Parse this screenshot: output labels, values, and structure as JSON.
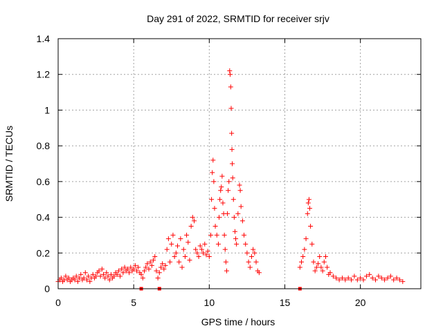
{
  "chart_data": {
    "type": "scatter",
    "title": "Day 291 of 2022, SRMTID for receiver srjv",
    "xlabel": "GPS time / hours",
    "ylabel": "SRMTID / TECUs",
    "xlim": [
      0,
      24
    ],
    "ylim": [
      0,
      1.4
    ],
    "xticks": [
      0,
      5,
      10,
      15,
      20
    ],
    "yticks": [
      0,
      0.2,
      0.4,
      0.6,
      0.8,
      1,
      1.2,
      1.4
    ],
    "ytick_labels": [
      "0",
      "0.2",
      "0.4",
      "0.6",
      "0.8",
      "1",
      "1.2",
      "1.4"
    ],
    "grid": true,
    "marker": "plus",
    "colors": {
      "series": "#ff0000",
      "axis": "#000000",
      "grid": "#a0a0a0"
    },
    "series": [
      {
        "name": "SRMTID",
        "points": [
          [
            0.0,
            0.04
          ],
          [
            0.1,
            0.05
          ],
          [
            0.2,
            0.06
          ],
          [
            0.3,
            0.04
          ],
          [
            0.4,
            0.05
          ],
          [
            0.5,
            0.07
          ],
          [
            0.6,
            0.05
          ],
          [
            0.7,
            0.06
          ],
          [
            0.8,
            0.04
          ],
          [
            0.9,
            0.05
          ],
          [
            1.0,
            0.06
          ],
          [
            1.1,
            0.05
          ],
          [
            1.2,
            0.07
          ],
          [
            1.3,
            0.04
          ],
          [
            1.4,
            0.06
          ],
          [
            1.5,
            0.08
          ],
          [
            1.6,
            0.05
          ],
          [
            1.7,
            0.06
          ],
          [
            1.8,
            0.09
          ],
          [
            1.9,
            0.05
          ],
          [
            2.0,
            0.07
          ],
          [
            2.1,
            0.04
          ],
          [
            2.2,
            0.06
          ],
          [
            2.3,
            0.08
          ],
          [
            2.4,
            0.06
          ],
          [
            2.5,
            0.07
          ],
          [
            2.6,
            0.09
          ],
          [
            2.7,
            0.1
          ],
          [
            2.8,
            0.07
          ],
          [
            2.9,
            0.11
          ],
          [
            3.0,
            0.08
          ],
          [
            3.1,
            0.06
          ],
          [
            3.2,
            0.09
          ],
          [
            3.3,
            0.07
          ],
          [
            3.4,
            0.05
          ],
          [
            3.5,
            0.08
          ],
          [
            3.6,
            0.06
          ],
          [
            3.7,
            0.07
          ],
          [
            3.8,
            0.09
          ],
          [
            3.9,
            0.08
          ],
          [
            4.0,
            0.1
          ],
          [
            4.1,
            0.07
          ],
          [
            4.2,
            0.11
          ],
          [
            4.3,
            0.09
          ],
          [
            4.4,
            0.12
          ],
          [
            4.5,
            0.1
          ],
          [
            4.6,
            0.11
          ],
          [
            4.7,
            0.09
          ],
          [
            4.8,
            0.12
          ],
          [
            4.9,
            0.1
          ],
          [
            5.0,
            0.11
          ],
          [
            5.1,
            0.13
          ],
          [
            5.2,
            0.1
          ],
          [
            5.3,
            0.12
          ],
          [
            5.4,
            0.09
          ],
          [
            5.5,
            0.08
          ],
          [
            5.6,
            0.06
          ],
          [
            5.7,
            0.1
          ],
          [
            5.8,
            0.12
          ],
          [
            5.9,
            0.14
          ],
          [
            6.0,
            0.11
          ],
          [
            6.1,
            0.15
          ],
          [
            6.2,
            0.13
          ],
          [
            6.3,
            0.16
          ],
          [
            6.4,
            0.18
          ],
          [
            6.5,
            0.1
          ],
          [
            6.6,
            0.06
          ],
          [
            6.7,
            0.09
          ],
          [
            6.8,
            0.12
          ],
          [
            6.9,
            0.14
          ],
          [
            7.0,
            0.11
          ],
          [
            7.1,
            0.13
          ],
          [
            7.2,
            0.22
          ],
          [
            7.3,
            0.28
          ],
          [
            7.4,
            0.15
          ],
          [
            7.5,
            0.25
          ],
          [
            7.6,
            0.3
          ],
          [
            7.7,
            0.18
          ],
          [
            7.8,
            0.2
          ],
          [
            7.9,
            0.24
          ],
          [
            8.0,
            0.15
          ],
          [
            8.1,
            0.28
          ],
          [
            8.2,
            0.12
          ],
          [
            8.3,
            0.22
          ],
          [
            8.4,
            0.18
          ],
          [
            8.5,
            0.3
          ],
          [
            8.6,
            0.26
          ],
          [
            8.7,
            0.16
          ],
          [
            8.8,
            0.35
          ],
          [
            8.9,
            0.4
          ],
          [
            9.0,
            0.38
          ],
          [
            9.1,
            0.22
          ],
          [
            9.2,
            0.2
          ],
          [
            9.3,
            0.18
          ],
          [
            9.4,
            0.24
          ],
          [
            9.5,
            0.22
          ],
          [
            9.6,
            0.2
          ],
          [
            9.7,
            0.25
          ],
          [
            9.8,
            0.19
          ],
          [
            9.9,
            0.21
          ],
          [
            10.0,
            0.18
          ],
          [
            10.1,
            0.3
          ],
          [
            10.15,
            0.5
          ],
          [
            10.2,
            0.65
          ],
          [
            10.25,
            0.72
          ],
          [
            10.3,
            0.6
          ],
          [
            10.35,
            0.45
          ],
          [
            10.4,
            0.35
          ],
          [
            10.5,
            0.3
          ],
          [
            10.6,
            0.25
          ],
          [
            10.65,
            0.4
          ],
          [
            10.7,
            0.5
          ],
          [
            10.75,
            0.55
          ],
          [
            10.8,
            0.57
          ],
          [
            10.85,
            0.63
          ],
          [
            10.9,
            0.48
          ],
          [
            10.95,
            0.42
          ],
          [
            11.0,
            0.3
          ],
          [
            11.05,
            0.22
          ],
          [
            11.1,
            0.15
          ],
          [
            11.15,
            0.1
          ],
          [
            11.2,
            0.42
          ],
          [
            11.25,
            0.55
          ],
          [
            11.3,
            0.6
          ],
          [
            11.35,
            1.22
          ],
          [
            11.38,
            1.2
          ],
          [
            11.42,
            1.13
          ],
          [
            11.45,
            1.01
          ],
          [
            11.48,
            0.87
          ],
          [
            11.5,
            0.78
          ],
          [
            11.52,
            0.7
          ],
          [
            11.55,
            0.62
          ],
          [
            11.6,
            0.5
          ],
          [
            11.65,
            0.4
          ],
          [
            11.7,
            0.32
          ],
          [
            11.75,
            0.28
          ],
          [
            11.8,
            0.25
          ],
          [
            11.9,
            0.42
          ],
          [
            12.0,
            0.58
          ],
          [
            12.05,
            0.55
          ],
          [
            12.1,
            0.46
          ],
          [
            12.2,
            0.38
          ],
          [
            12.3,
            0.3
          ],
          [
            12.4,
            0.25
          ],
          [
            12.5,
            0.2
          ],
          [
            12.6,
            0.15
          ],
          [
            12.7,
            0.12
          ],
          [
            12.8,
            0.18
          ],
          [
            12.9,
            0.22
          ],
          [
            13.0,
            0.2
          ],
          [
            13.1,
            0.15
          ],
          [
            13.2,
            0.1
          ],
          [
            13.3,
            0.09
          ],
          [
            16.0,
            0.12
          ],
          [
            16.1,
            0.15
          ],
          [
            16.2,
            0.18
          ],
          [
            16.3,
            0.22
          ],
          [
            16.4,
            0.28
          ],
          [
            16.5,
            0.42
          ],
          [
            16.55,
            0.48
          ],
          [
            16.6,
            0.5
          ],
          [
            16.65,
            0.45
          ],
          [
            16.7,
            0.35
          ],
          [
            16.8,
            0.25
          ],
          [
            16.9,
            0.15
          ],
          [
            17.0,
            0.1
          ],
          [
            17.1,
            0.12
          ],
          [
            17.2,
            0.14
          ],
          [
            17.3,
            0.18
          ],
          [
            17.4,
            0.12
          ],
          [
            17.5,
            0.1
          ],
          [
            17.6,
            0.15
          ],
          [
            17.7,
            0.18
          ],
          [
            17.8,
            0.12
          ],
          [
            17.9,
            0.08
          ],
          [
            18.0,
            0.09
          ],
          [
            18.2,
            0.07
          ],
          [
            18.4,
            0.06
          ],
          [
            18.6,
            0.05
          ],
          [
            18.8,
            0.06
          ],
          [
            19.0,
            0.05
          ],
          [
            19.2,
            0.06
          ],
          [
            19.4,
            0.05
          ],
          [
            19.6,
            0.07
          ],
          [
            19.8,
            0.05
          ],
          [
            20.0,
            0.06
          ],
          [
            20.2,
            0.05
          ],
          [
            20.4,
            0.07
          ],
          [
            20.6,
            0.08
          ],
          [
            20.8,
            0.06
          ],
          [
            21.0,
            0.05
          ],
          [
            21.2,
            0.07
          ],
          [
            21.4,
            0.06
          ],
          [
            21.6,
            0.05
          ],
          [
            21.8,
            0.06
          ],
          [
            22.0,
            0.07
          ],
          [
            22.2,
            0.05
          ],
          [
            22.4,
            0.06
          ],
          [
            22.6,
            0.05
          ],
          [
            22.8,
            0.04
          ]
        ]
      }
    ],
    "baseline_markers": [
      5.5,
      6.7,
      16.0
    ]
  }
}
